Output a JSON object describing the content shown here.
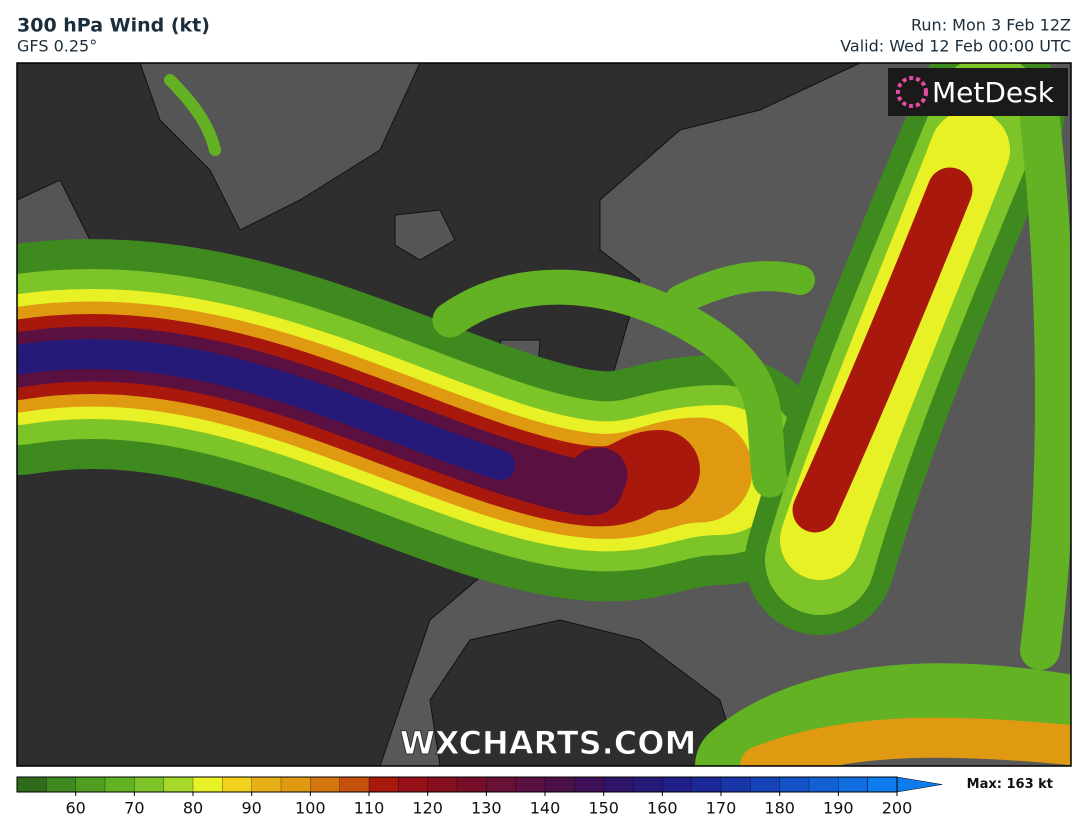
{
  "header": {
    "title": "300 hPa Wind (kt)",
    "model": "GFS 0.25°",
    "run": "Run: Mon 3 Feb 12Z",
    "valid": "Valid: Wed 12 Feb 00:00 UTC"
  },
  "logo": "MetDesk",
  "watermark": "WXCHARTS.COM",
  "colorbar": {
    "range": [
      50,
      200
    ],
    "ticks": [
      60,
      70,
      80,
      90,
      100,
      110,
      120,
      130,
      140,
      150,
      160,
      170,
      180,
      190,
      200
    ],
    "colors": [
      "#2e6b1a",
      "#3f8a1f",
      "#4f9e22",
      "#62b224",
      "#7cc427",
      "#a6d82a",
      "#e8f026",
      "#f2d21c",
      "#e8b016",
      "#e09a12",
      "#d4760e",
      "#c4520c",
      "#a8180c",
      "#961018",
      "#86101e",
      "#760e2a",
      "#681036",
      "#5a1040",
      "#4c1048",
      "#3e1058",
      "#301468",
      "#261a78",
      "#201e88",
      "#1a2898",
      "#1836a8",
      "#1644b8",
      "#1452c8",
      "#1260d4",
      "#106ee0",
      "#0e7cec"
    ],
    "max_label": "Max: 163 kt"
  }
}
